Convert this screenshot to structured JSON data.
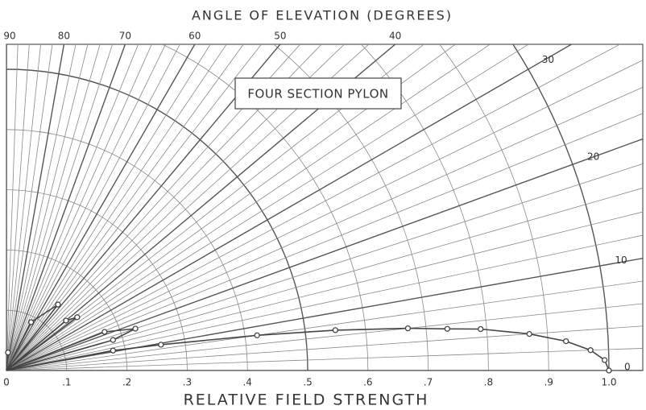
{
  "chart_data": {
    "type": "polar",
    "title": "ANGLE OF ELEVATION (DEGREES)",
    "xlabel": "RELATIVE FIELD STRENGTH",
    "annotation": "FOUR SECTION PYLON",
    "rlim": [
      0,
      1.0
    ],
    "rticks": [
      0,
      {
        "value": 0.1,
        "label": ".1"
      },
      {
        "value": 0.2,
        "label": ".2"
      },
      {
        "value": 0.3,
        "label": ".3"
      },
      {
        "value": 0.4,
        "label": ".4"
      },
      {
        "value": 0.5,
        "label": ".5"
      },
      {
        "value": 0.6,
        "label": ".6"
      },
      {
        "value": 0.7,
        "label": ".7"
      },
      {
        "value": 0.8,
        "label": ".8"
      },
      {
        "value": 0.9,
        "label": ".9"
      },
      {
        "value": 1.0,
        "label": "1.0"
      }
    ],
    "thetalim": [
      0,
      90
    ],
    "thetaticks": [
      90,
      80,
      70,
      60,
      50,
      40,
      30,
      20,
      10,
      0
    ],
    "grid": true,
    "series": [
      {
        "color": "#444",
        "theta": [
          90,
          85,
          80,
          66,
          63,
          52,
          45,
          40,
          37,
          33,
          21.5,
          18,
          16,
          14,
          12,
          10.6,
          9.5,
          8,
          7,
          6,
          5.4,
          5,
          4,
          3,
          2,
          1,
          0
        ],
        "values": [
          0,
          0.03,
          0,
          0,
          0.09,
          0.139,
          0,
          0.129,
          0.147,
          0,
          0.175,
          0.225,
          0.184,
          0,
          0,
          0.18,
          0.26,
          0.42,
          0.55,
          0.67,
          0.735,
          0.79,
          0.87,
          0.93,
          0.97,
          0.993,
          1.0
        ]
      }
    ]
  }
}
